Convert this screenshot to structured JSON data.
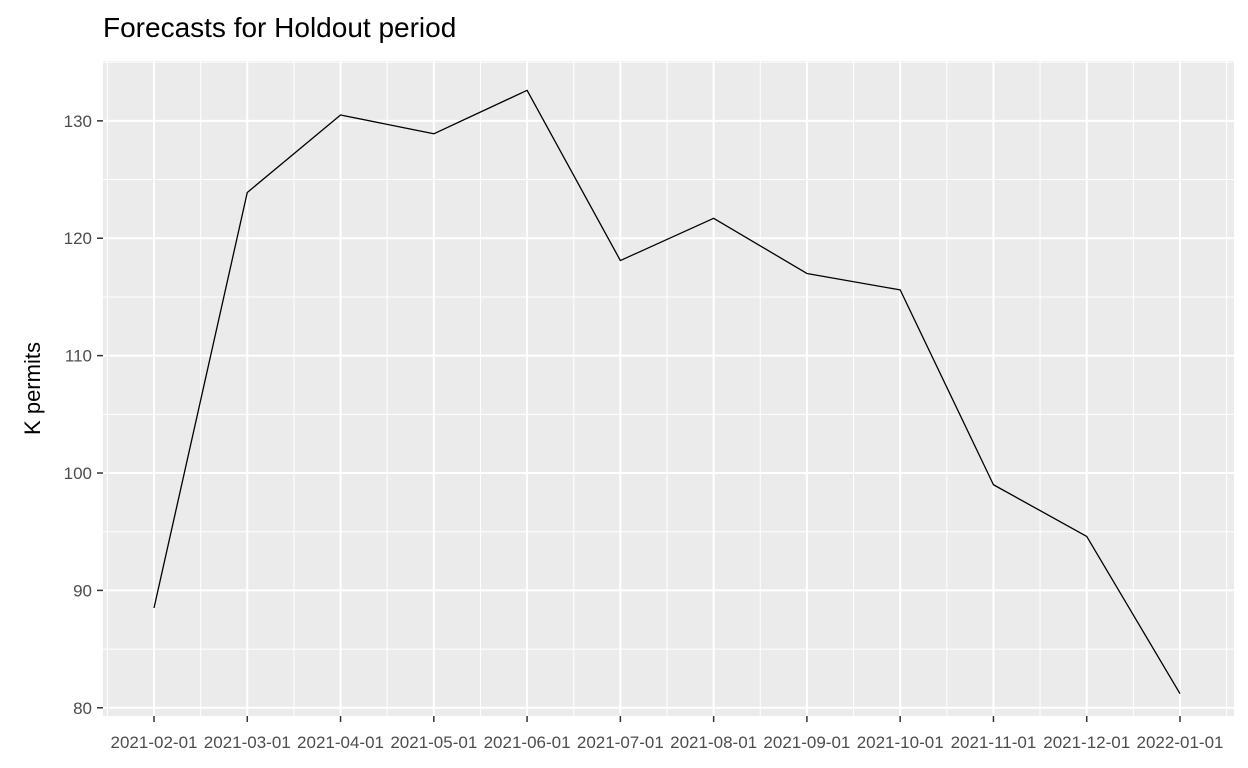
{
  "chart_data": {
    "type": "line",
    "title": "Forecasts for Holdout period",
    "xlabel": "",
    "ylabel": "K permits",
    "x": [
      "2021-02-01",
      "2021-03-01",
      "2021-04-01",
      "2021-05-01",
      "2021-06-01",
      "2021-07-01",
      "2021-08-01",
      "2021-09-01",
      "2021-10-01",
      "2021-11-01",
      "2021-12-01",
      "2022-01-01"
    ],
    "values": [
      88.5,
      123.9,
      130.5,
      128.9,
      132.6,
      118.1,
      121.7,
      117.0,
      115.6,
      99.0,
      94.6,
      81.2
    ],
    "ylim": [
      79.3,
      135.1
    ],
    "y_ticks": [
      80,
      90,
      100,
      110,
      120,
      130
    ],
    "grid": true,
    "legend": "none",
    "colors": {
      "panel": "#EBEBEB",
      "grid": "#FFFFFF",
      "line": "#000000",
      "tick_text": "#4D4D4D",
      "tick_mark": "#333333"
    }
  }
}
